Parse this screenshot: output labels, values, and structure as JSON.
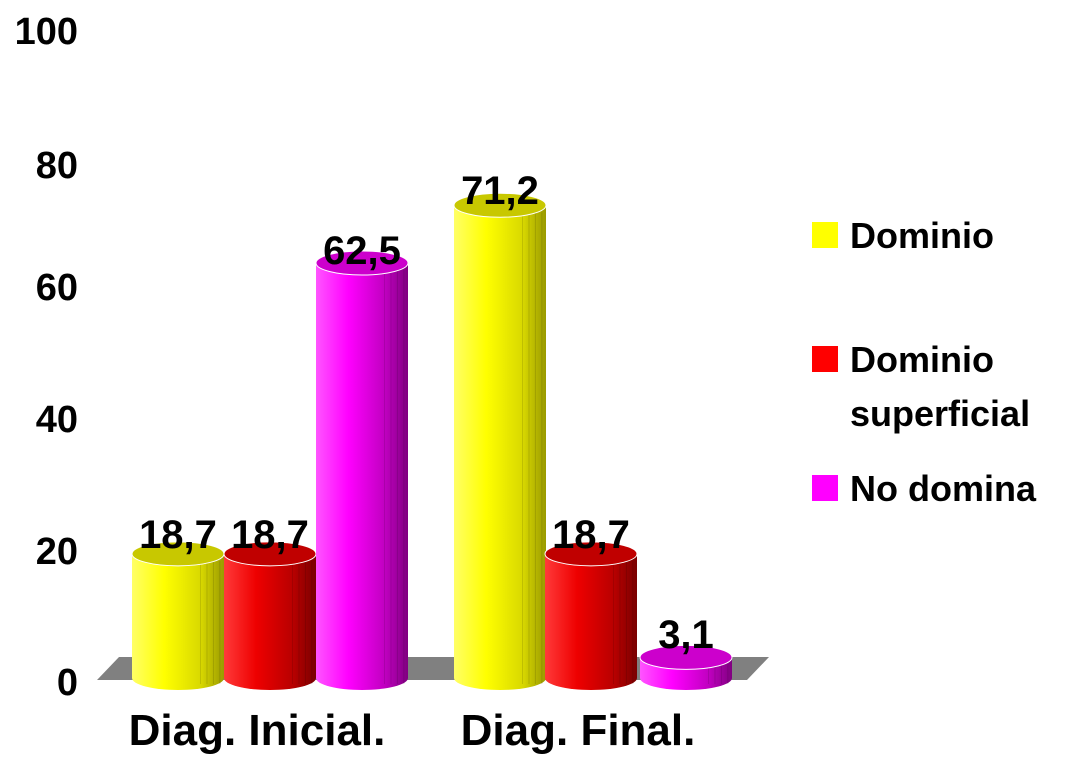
{
  "chart_data": {
    "type": "bar",
    "style": "3d-cylinder",
    "categories": [
      "Diag. Inicial.",
      "Diag. Final."
    ],
    "series": [
      {
        "name": "Dominio",
        "values": [
          18.7,
          71.2
        ],
        "labels": [
          "18,7",
          "71,2"
        ],
        "color": "#ffff00"
      },
      {
        "name": "Dominio superficial",
        "values": [
          18.7,
          18.7
        ],
        "labels": [
          "18,7",
          "18,7"
        ],
        "color": "#ff0000"
      },
      {
        "name": "No domina",
        "values": [
          62.5,
          3.1
        ],
        "labels": [
          "62,5",
          "3,1"
        ],
        "color": "#ff00ff"
      }
    ],
    "yticks": [
      "0",
      "20",
      "40",
      "60",
      "80",
      "100"
    ],
    "ylim": [
      0,
      100
    ],
    "grid": false,
    "legend_position": "right",
    "floor_color": "#808080"
  }
}
